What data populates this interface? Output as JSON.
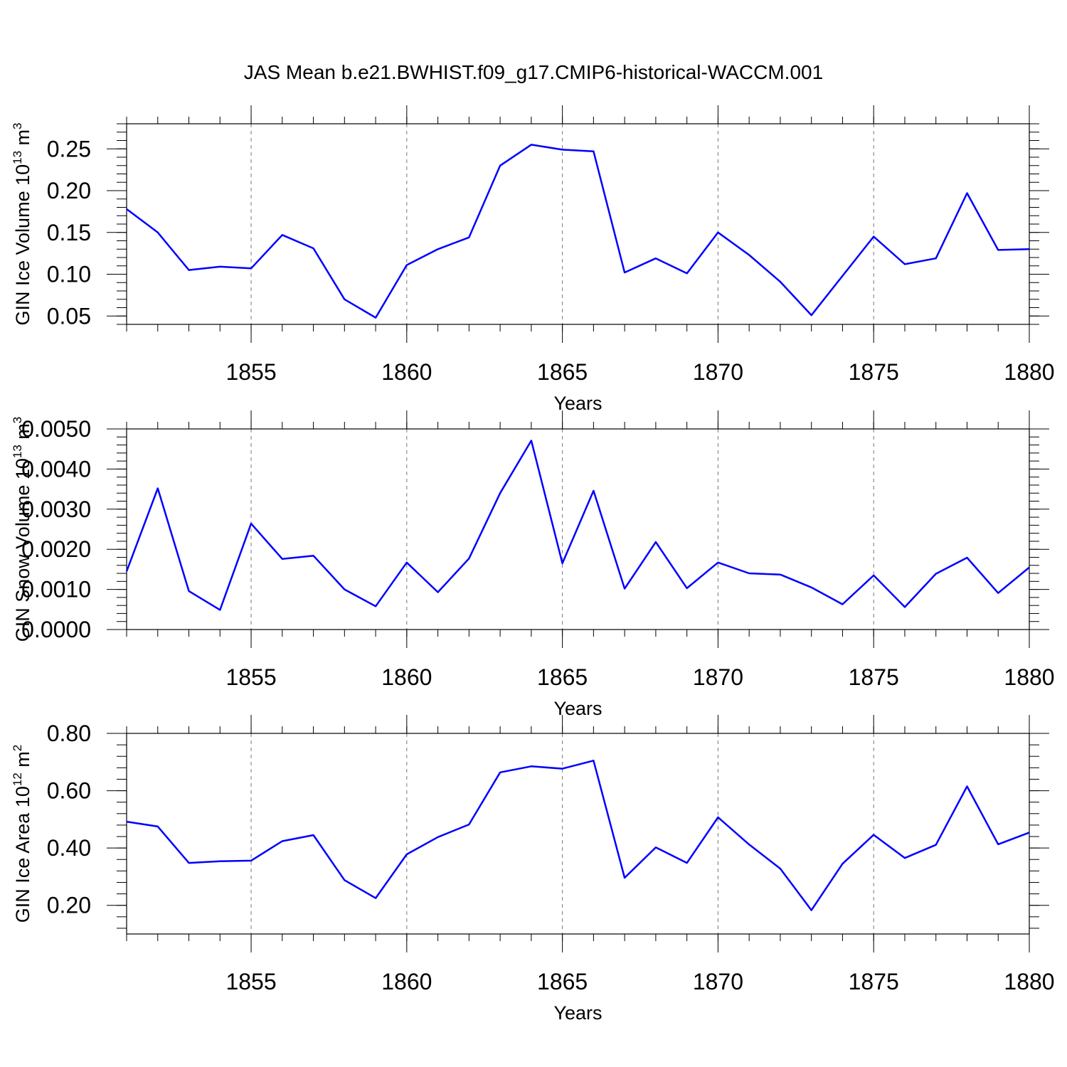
{
  "title": "JAS Mean b.e21.BWHIST.f09_g17.CMIP6-historical-WACCM.001",
  "line_color": "#0000ff",
  "chart_data": [
    {
      "type": "line",
      "series": [
        {
          "values": [
            0.178,
            0.15,
            0.105,
            0.109,
            0.107,
            0.147,
            0.131,
            0.07,
            0.048,
            0.111,
            0.13,
            0.144,
            0.23,
            0.255,
            0.249,
            0.247,
            0.102,
            0.119,
            0.101,
            0.15,
            0.123,
            0.091,
            0.051,
            0.098,
            0.145,
            0.112,
            0.119,
            0.197,
            0.129,
            0.13
          ]
        }
      ],
      "x": [
        1851,
        1852,
        1853,
        1854,
        1855,
        1856,
        1857,
        1858,
        1859,
        1860,
        1861,
        1862,
        1863,
        1864,
        1865,
        1866,
        1867,
        1868,
        1869,
        1870,
        1871,
        1872,
        1873,
        1874,
        1875,
        1876,
        1877,
        1878,
        1879,
        1880
      ],
      "xlim": [
        1851,
        1880
      ],
      "xticks": [
        "1855",
        "1860",
        "1865",
        "1870",
        "1875",
        "1880"
      ],
      "ylim": [
        0.04,
        0.28
      ],
      "yticks": [
        "0.05",
        "0.10",
        "0.15",
        "0.20",
        "0.25"
      ],
      "xlabel": "Years",
      "ylabel": "GIN Ice Volume 10",
      "ylabel_exp1": "13",
      "ylabel_unit": " m",
      "ylabel_exp2": "3",
      "grid": "vertical dashed"
    },
    {
      "type": "line",
      "series": [
        {
          "values": [
            0.00145,
            0.00352,
            0.00096,
            0.00049,
            0.00264,
            0.00176,
            0.00184,
            0.001,
            0.00058,
            0.00167,
            0.00093,
            0.00177,
            0.0034,
            0.00471,
            0.00165,
            0.00346,
            0.00102,
            0.00218,
            0.00103,
            0.00167,
            0.0014,
            0.00137,
            0.00105,
            0.00063,
            0.00135,
            0.00056,
            0.00139,
            0.00179,
            0.00091,
            0.00155
          ]
        }
      ],
      "x": [
        1851,
        1852,
        1853,
        1854,
        1855,
        1856,
        1857,
        1858,
        1859,
        1860,
        1861,
        1862,
        1863,
        1864,
        1865,
        1866,
        1867,
        1868,
        1869,
        1870,
        1871,
        1872,
        1873,
        1874,
        1875,
        1876,
        1877,
        1878,
        1879,
        1880
      ],
      "xlim": [
        1851,
        1880
      ],
      "xticks": [
        "1855",
        "1860",
        "1865",
        "1870",
        "1875",
        "1880"
      ],
      "ylim": [
        0.0,
        0.005
      ],
      "yticks": [
        "0.0000",
        "0.0010",
        "0.0020",
        "0.0030",
        "0.0040",
        "0.0050"
      ],
      "xlabel": "Years",
      "ylabel": "GIN Snow Volume 10",
      "ylabel_exp1": "13",
      "ylabel_unit": " m",
      "ylabel_exp2": "3",
      "grid": "vertical dashed"
    },
    {
      "type": "line",
      "series": [
        {
          "values": [
            0.492,
            0.475,
            0.348,
            0.354,
            0.356,
            0.424,
            0.445,
            0.288,
            0.225,
            0.378,
            0.438,
            0.482,
            0.664,
            0.685,
            0.677,
            0.705,
            0.296,
            0.402,
            0.348,
            0.507,
            0.412,
            0.328,
            0.183,
            0.345,
            0.446,
            0.365,
            0.411,
            0.615,
            0.413,
            0.454
          ]
        }
      ],
      "x": [
        1851,
        1852,
        1853,
        1854,
        1855,
        1856,
        1857,
        1858,
        1859,
        1860,
        1861,
        1862,
        1863,
        1864,
        1865,
        1866,
        1867,
        1868,
        1869,
        1870,
        1871,
        1872,
        1873,
        1874,
        1875,
        1876,
        1877,
        1878,
        1879,
        1880
      ],
      "xlim": [
        1851,
        1880
      ],
      "xticks": [
        "1855",
        "1860",
        "1865",
        "1870",
        "1875",
        "1880"
      ],
      "ylim": [
        0.1,
        0.8
      ],
      "yticks": [
        "0.20",
        "0.40",
        "0.60",
        "0.80"
      ],
      "xlabel": "Years",
      "ylabel": "GIN Ice Area 10",
      "ylabel_exp1": "12",
      "ylabel_unit": " m",
      "ylabel_exp2": "2",
      "grid": "vertical dashed"
    }
  ]
}
